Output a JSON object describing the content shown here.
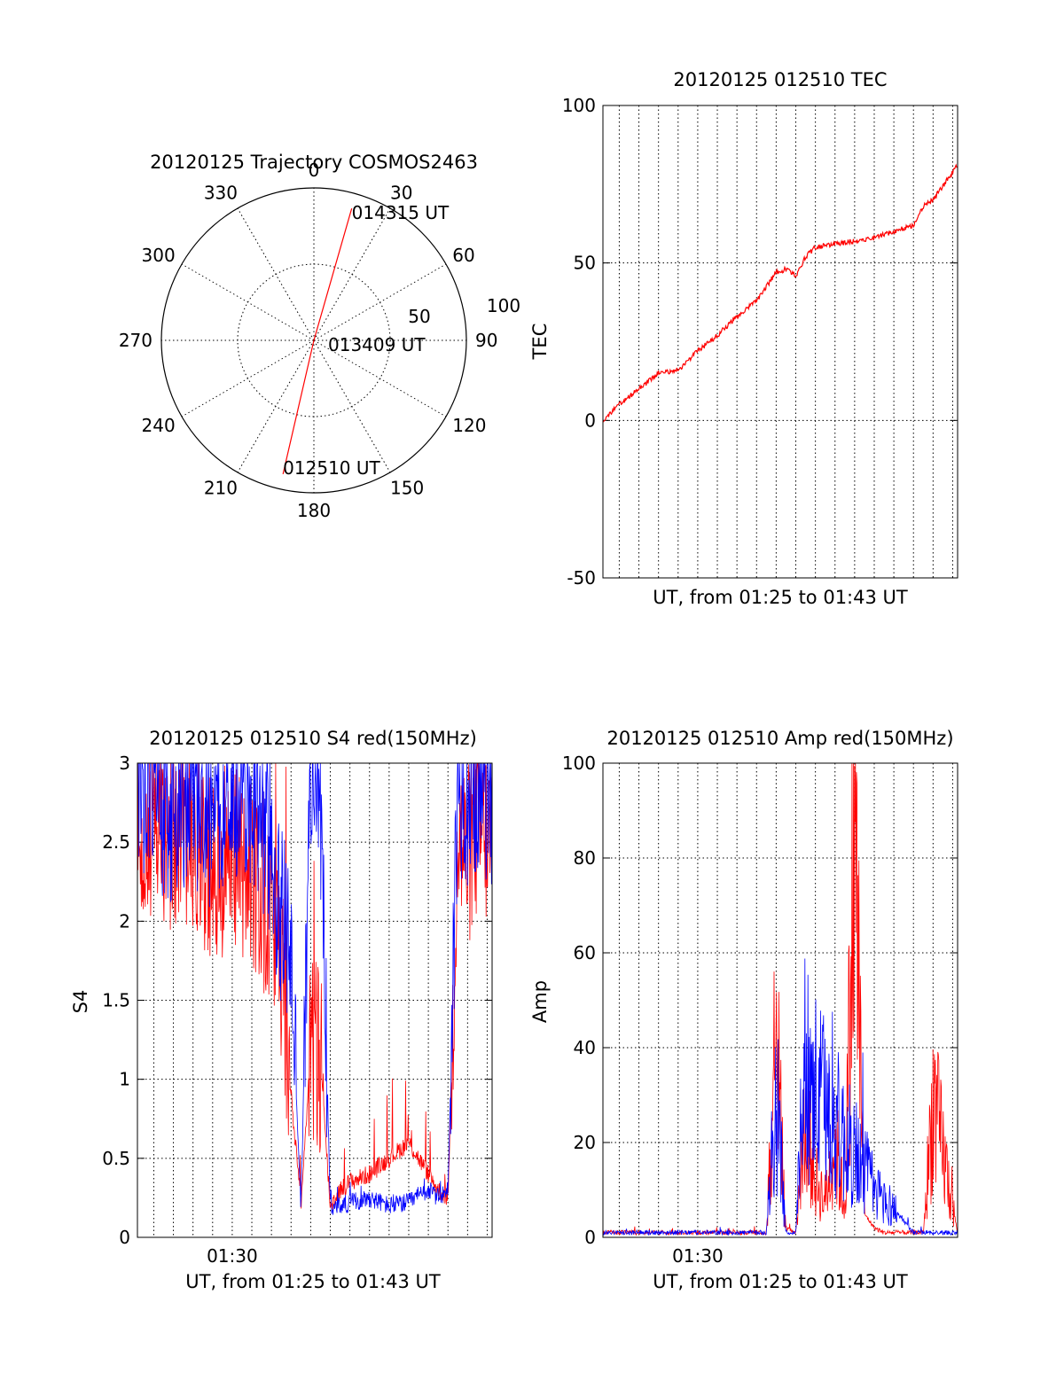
{
  "chart_data": [
    {
      "type": "polar",
      "title": "20120125 Trajectory COSMOS2463",
      "angle_labels": [
        "0",
        "30",
        "60",
        "90",
        "120",
        "150",
        "180",
        "210",
        "240",
        "270",
        "300",
        "330"
      ],
      "radius_labels": [
        "50",
        "100"
      ],
      "rlim": [
        0,
        100
      ],
      "grid": true,
      "series": [
        {
          "color": "#ff0000",
          "points": [
            {
              "azimuth_deg": 16,
              "radius": 90
            },
            {
              "azimuth_deg": 0,
              "radius": 0
            },
            {
              "azimuth_deg": 193,
              "radius": 90
            }
          ]
        }
      ],
      "annotations": [
        {
          "text": "014315 UT",
          "azimuth_deg": 16,
          "radius": 90
        },
        {
          "text": "013409 UT",
          "azimuth_deg": 0,
          "radius": 0
        },
        {
          "text": "012510 UT",
          "azimuth_deg": 193,
          "radius": 90
        }
      ]
    },
    {
      "type": "line",
      "title": "20120125 012510 TEC",
      "xlabel": "UT, from 01:25 to 01:43 UT",
      "ylabel": "TEC",
      "xlim": [
        "01:25:10",
        "01:43:15"
      ],
      "ylim": [
        -50,
        100
      ],
      "yticks": [
        "-50",
        "0",
        "50",
        "100"
      ],
      "xticks": [],
      "grid": true,
      "series": [
        {
          "color": "#ff0000",
          "x": [
            "01:25:10",
            "01:26:00",
            "01:27:00",
            "01:28:00",
            "01:29:00",
            "01:30:00",
            "01:31:00",
            "01:32:00",
            "01:33:00",
            "01:34:00",
            "01:34:30",
            "01:35:00",
            "01:35:30",
            "01:36:00",
            "01:37:00",
            "01:38:00",
            "01:39:00",
            "01:40:00",
            "01:41:00",
            "01:41:30",
            "01:42:00",
            "01:43:15"
          ],
          "y": [
            0,
            5,
            10,
            15,
            16,
            22,
            27,
            33,
            38,
            47,
            48,
            46,
            52,
            55,
            56,
            57,
            58,
            60,
            62,
            68,
            70,
            81
          ]
        }
      ]
    },
    {
      "type": "line",
      "title": "20120125 012510 S4 red(150MHz)",
      "xlabel": "UT, from 01:25 to 01:43 UT",
      "ylabel": "S4",
      "xlim": [
        "01:25:10",
        "01:43:15"
      ],
      "ylim": [
        0,
        3
      ],
      "yticks": [
        "0",
        "0.5",
        "1",
        "1.5",
        "2",
        "2.5",
        "3"
      ],
      "xticks": [
        "01:30"
      ],
      "grid": true,
      "series": [
        {
          "color": "#ff0000",
          "x": [
            "01:25:10",
            "01:26:00",
            "01:27:00",
            "01:28:00",
            "01:29:00",
            "01:30:00",
            "01:31:00",
            "01:32:00",
            "01:32:30",
            "01:33:00",
            "01:33:30",
            "01:34:00",
            "01:34:30",
            "01:35:00",
            "01:35:30",
            "01:36:00",
            "01:37:00",
            "01:38:00",
            "01:39:00",
            "01:40:00",
            "01:40:30",
            "01:41:00",
            "01:41:30",
            "01:42:00",
            "01:42:30",
            "01:43:15"
          ],
          "y": [
            2.7,
            2.6,
            2.5,
            2.4,
            2.3,
            2.4,
            2.3,
            2.0,
            1.6,
            0.9,
            0.2,
            1.2,
            1.1,
            0.2,
            0.3,
            0.35,
            0.4,
            0.5,
            0.6,
            0.4,
            0.3,
            0.25,
            2.5,
            2.4,
            2.6,
            2.5
          ]
        },
        {
          "color": "#0000ff",
          "x": [
            "01:25:10",
            "01:26:00",
            "01:27:00",
            "01:28:00",
            "01:29:00",
            "01:30:00",
            "01:31:00",
            "01:32:00",
            "01:32:30",
            "01:33:00",
            "01:33:30",
            "01:34:00",
            "01:34:30",
            "01:35:00",
            "01:35:30",
            "01:36:00",
            "01:37:00",
            "01:38:00",
            "01:39:00",
            "01:40:00",
            "01:40:30",
            "01:41:00",
            "01:41:30",
            "01:42:00",
            "01:42:30",
            "01:43:15"
          ],
          "y": [
            2.9,
            2.8,
            2.7,
            2.8,
            2.6,
            2.9,
            2.8,
            2.5,
            2.0,
            1.8,
            0.18,
            2.9,
            2.8,
            0.18,
            0.2,
            0.22,
            0.25,
            0.2,
            0.22,
            0.3,
            0.25,
            0.3,
            2.9,
            2.8,
            2.9,
            2.8
          ]
        }
      ]
    },
    {
      "type": "line",
      "title": "20120125 012510 Amp red(150MHz)",
      "xlabel": "UT, from 01:25 to 01:43 UT",
      "ylabel": "Amp",
      "xlim": [
        "01:25:10",
        "01:43:15"
      ],
      "ylim": [
        0,
        100
      ],
      "yticks": [
        "0",
        "20",
        "40",
        "60",
        "80",
        "100"
      ],
      "xticks": [
        "01:30"
      ],
      "grid": true,
      "series": [
        {
          "color": "#ff0000",
          "x": [
            "01:25:10",
            "01:28:00",
            "01:31:00",
            "01:33:00",
            "01:33:30",
            "01:34:00",
            "01:34:30",
            "01:35:00",
            "01:35:30",
            "01:36:00",
            "01:36:30",
            "01:37:00",
            "01:37:30",
            "01:38:00",
            "01:38:30",
            "01:39:00",
            "01:39:30",
            "01:40:00",
            "01:41:00",
            "01:41:30",
            "01:42:00",
            "01:43:15"
          ],
          "y": [
            1,
            1,
            1,
            1,
            1,
            42,
            2,
            1,
            25,
            12,
            8,
            20,
            6,
            87,
            5,
            2,
            1,
            1,
            1,
            1,
            29,
            1
          ]
        },
        {
          "color": "#0000ff",
          "x": [
            "01:25:10",
            "01:28:00",
            "01:31:00",
            "01:33:00",
            "01:33:30",
            "01:34:00",
            "01:34:30",
            "01:35:00",
            "01:35:30",
            "01:36:00",
            "01:36:30",
            "01:37:00",
            "01:37:30",
            "01:38:00",
            "01:38:30",
            "01:39:00",
            "01:39:30",
            "01:40:00",
            "01:41:00",
            "01:41:30",
            "01:42:00",
            "01:43:15"
          ],
          "y": [
            1,
            1,
            1,
            1,
            1,
            30,
            1,
            1,
            40,
            30,
            28,
            25,
            20,
            18,
            15,
            10,
            8,
            6,
            1,
            1,
            1,
            1
          ]
        }
      ]
    }
  ]
}
